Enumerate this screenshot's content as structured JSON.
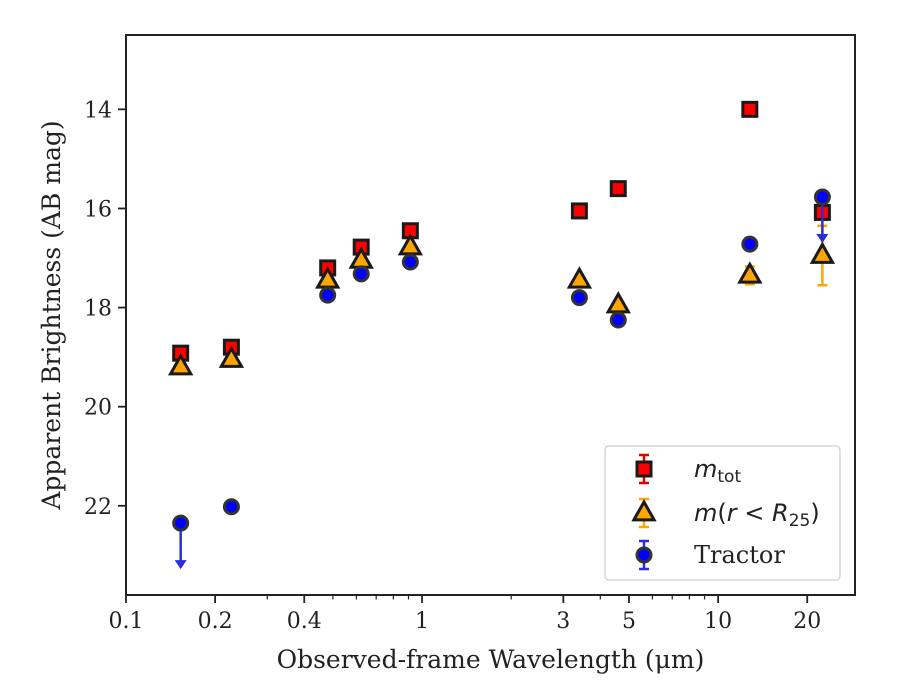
{
  "chart_data": {
    "type": "scatter",
    "xlabel": "Observed-frame Wavelength (μm)",
    "ylabel": "Apparent Brightness (AB mag)",
    "xscale": "log",
    "xlim": [
      0.1,
      29
    ],
    "ylim": [
      12.5,
      23.8
    ],
    "y_inverted": true,
    "x_ticks": [
      0.1,
      0.2,
      0.4,
      1,
      3,
      5,
      10,
      20
    ],
    "x_tick_labels": [
      "0.1",
      "0.2",
      "0.4",
      "1",
      "3",
      "5",
      "10",
      "20"
    ],
    "y_ticks": [
      14,
      16,
      18,
      20,
      22
    ],
    "y_tick_labels": [
      "14",
      "16",
      "18",
      "20",
      "22"
    ],
    "grid": false,
    "legend_position": "lower-right",
    "series": [
      {
        "name": "m_tot",
        "legend_html": "m<sub>tot</sub>",
        "marker": "square",
        "color": "#ff0000",
        "edge": "#1a1a1a",
        "errcolor": "#e00000",
        "points": [
          {
            "x": 0.153,
            "y": 18.92
          },
          {
            "x": 0.227,
            "y": 18.8
          },
          {
            "x": 0.48,
            "y": 17.2
          },
          {
            "x": 0.623,
            "y": 16.78
          },
          {
            "x": 0.913,
            "y": 16.45
          },
          {
            "x": 3.4,
            "y": 16.05
          },
          {
            "x": 4.6,
            "y": 15.6
          },
          {
            "x": 12.8,
            "y": 14.0
          },
          {
            "x": 22.5,
            "y": 16.08
          }
        ]
      },
      {
        "name": "m(r < R25)",
        "marker": "triangle",
        "color": "#ffa500",
        "edge": "#1a1a1a",
        "errcolor": "#ffa500",
        "points": [
          {
            "x": 0.153,
            "y": 19.2
          },
          {
            "x": 0.227,
            "y": 19.05
          },
          {
            "x": 0.48,
            "y": 17.45
          },
          {
            "x": 0.623,
            "y": 17.05
          },
          {
            "x": 0.913,
            "y": 16.78
          },
          {
            "x": 3.4,
            "y": 17.45
          },
          {
            "x": 4.6,
            "y": 17.95
          },
          {
            "x": 12.8,
            "y": 17.35,
            "err": 0.18
          },
          {
            "x": 22.5,
            "y": 16.95,
            "err": 0.6
          }
        ]
      },
      {
        "name": "Tractor",
        "marker": "circle",
        "color": "#0000ff",
        "edge": "#333333",
        "errcolor": "#2b2be0",
        "points": [
          {
            "x": 0.153,
            "y": 22.35,
            "upper_limit": true
          },
          {
            "x": 0.227,
            "y": 22.02
          },
          {
            "x": 0.48,
            "y": 17.75
          },
          {
            "x": 0.623,
            "y": 17.32
          },
          {
            "x": 0.913,
            "y": 17.08
          },
          {
            "x": 3.4,
            "y": 17.8
          },
          {
            "x": 4.6,
            "y": 18.25
          },
          {
            "x": 12.8,
            "y": 16.72
          },
          {
            "x": 22.5,
            "y": 15.77,
            "upper_limit": true
          }
        ]
      }
    ],
    "legend_entries": [
      "m_tot",
      "m(r < R25)",
      "Tractor"
    ]
  }
}
